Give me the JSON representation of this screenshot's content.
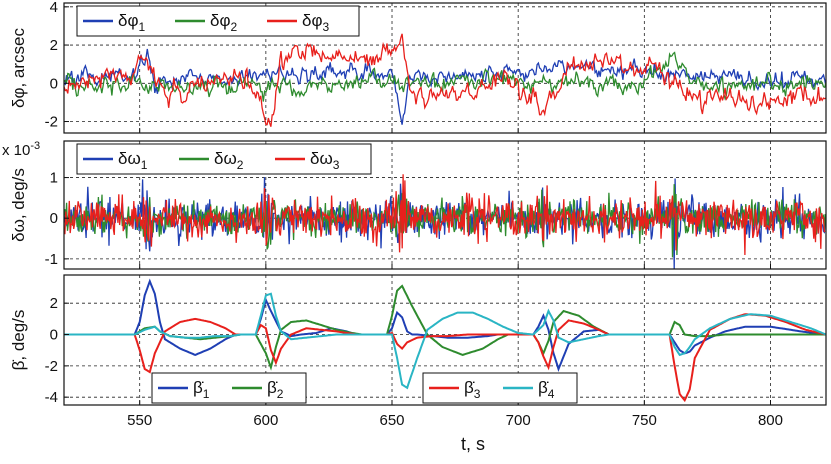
{
  "chart_data": [
    {
      "type": "line",
      "panel": "top",
      "ylabel": "δφ, arcsec",
      "xlim": [
        520,
        822
      ],
      "ylim": [
        -2.6,
        4.2
      ],
      "xticks": [
        550,
        600,
        650,
        700,
        750,
        800
      ],
      "yticks": [
        -2,
        0,
        2,
        4
      ],
      "grid": true,
      "legend_position": "top-left",
      "series": [
        {
          "name": "δφ",
          "sub": "1",
          "color": "#1f3fb4",
          "x": [
            520,
            545,
            550,
            553,
            556,
            560,
            600,
            605,
            650,
            654,
            657,
            700,
            710,
            718,
            750,
            760,
            770,
            790,
            822
          ],
          "y": [
            0.2,
            0.3,
            0.7,
            1.3,
            -0.2,
            0.2,
            0.4,
            0.5,
            0.5,
            -1.9,
            0.3,
            0.6,
            1.0,
            0.8,
            0.6,
            0.5,
            0.3,
            0.2,
            0.2
          ]
        },
        {
          "name": "δφ",
          "sub": "2",
          "color": "#2e8b2e",
          "x": [
            520,
            550,
            555,
            600,
            650,
            655,
            660,
            700,
            710,
            750,
            758,
            762,
            766,
            770,
            790,
            822
          ],
          "y": [
            -0.1,
            0.0,
            -0.2,
            -0.1,
            0.1,
            -0.1,
            0.0,
            0.1,
            0.0,
            0.0,
            1.0,
            1.8,
            0.8,
            0.0,
            0.0,
            0.0
          ],
          "sd": 0.22
        },
        {
          "name": "δφ",
          "sub": "3",
          "color": "#e8201c",
          "x": [
            520,
            548,
            552,
            556,
            560,
            570,
            580,
            595,
            599,
            602,
            606,
            612,
            640,
            650,
            653,
            657,
            661,
            680,
            700,
            706,
            710,
            714,
            720,
            745,
            755,
            758,
            760,
            770,
            790,
            822
          ],
          "y": [
            0.0,
            0.4,
            1.4,
            0.3,
            -0.6,
            -0.2,
            0.2,
            0.0,
            -1.4,
            -2.0,
            1.2,
            1.5,
            1.2,
            1.6,
            2.5,
            -0.2,
            -0.6,
            -0.3,
            0.0,
            -0.8,
            -1.8,
            -0.5,
            1.0,
            1.0,
            0.8,
            0.3,
            0.1,
            -0.7,
            -0.9,
            -0.8
          ],
          "sd": 0.25
        }
      ]
    },
    {
      "type": "line",
      "panel": "middle",
      "ylabel": "δω, deg/s",
      "scale_label": "x 10-3",
      "xlim": [
        520,
        822
      ],
      "ylim": [
        -1.25,
        1.9
      ],
      "xticks": [
        550,
        600,
        650,
        700,
        750,
        800
      ],
      "yticks": [
        -1,
        0,
        1
      ],
      "grid": true,
      "legend_position": "top-left",
      "series": [
        {
          "name": "δω",
          "sub": "1",
          "color": "#1f3fb4",
          "noise_sd": 0.22
        },
        {
          "name": "δω",
          "sub": "2",
          "color": "#2e8b2e",
          "noise_sd": 0.2
        },
        {
          "name": "δω",
          "sub": "3",
          "color": "#e8201c",
          "noise_sd": 0.24
        }
      ],
      "spikes": [
        {
          "x": 553,
          "amplitude": 0.75
        },
        {
          "x": 600,
          "amplitude": 0.95
        },
        {
          "x": 654,
          "amplitude": 0.95
        },
        {
          "x": 710,
          "amplitude": 0.7
        },
        {
          "x": 762,
          "amplitude": 0.9
        }
      ]
    },
    {
      "type": "line",
      "panel": "bottom",
      "ylabel": "β̇, deg/s",
      "xlabel": "t, s",
      "xlim": [
        520,
        822
      ],
      "ylim": [
        -4.5,
        3.8
      ],
      "xticks": [
        550,
        600,
        650,
        700,
        750,
        800
      ],
      "yticks": [
        -4,
        -2,
        0,
        2
      ],
      "grid": true,
      "legend_position": "bottom-center",
      "series": [
        {
          "name": "β̇",
          "sub": "1",
          "color": "#1f3fb4",
          "x": [
            520,
            548,
            550,
            552,
            554,
            556,
            558,
            560,
            566,
            572,
            578,
            584,
            588,
            596,
            598,
            600,
            602,
            606,
            610,
            614,
            620,
            626,
            632,
            636,
            648,
            650,
            652,
            654,
            656,
            658,
            660,
            666,
            672,
            680,
            688,
            692,
            706,
            708,
            710,
            712,
            714,
            716,
            720,
            726,
            732,
            736,
            760,
            762,
            764,
            766,
            768,
            770,
            776,
            782,
            790,
            800,
            812,
            822
          ],
          "y": [
            0,
            0,
            0.8,
            2.5,
            3.4,
            2.6,
            0.8,
            -0.3,
            -0.9,
            -1.3,
            -0.9,
            -0.3,
            0,
            0,
            1.0,
            2.2,
            1.5,
            0.2,
            -0.1,
            0,
            0.1,
            0.4,
            0.2,
            0,
            0,
            0.4,
            1.4,
            1.1,
            0.2,
            0,
            0,
            -0.1,
            -0.2,
            -0.2,
            -0.1,
            0,
            0,
            0.5,
            1.2,
            0.3,
            -1.2,
            -2.2,
            -0.6,
            0.2,
            0.3,
            0,
            0,
            -0.5,
            -1.0,
            -1.2,
            -1.1,
            -0.7,
            -0.2,
            0.2,
            0.5,
            0.5,
            0.2,
            0
          ]
        },
        {
          "name": "β̇",
          "sub": "2",
          "color": "#2e8b2e",
          "x": [
            520,
            548,
            552,
            556,
            558,
            562,
            568,
            574,
            580,
            586,
            590,
            596,
            600,
            602,
            604,
            606,
            610,
            616,
            622,
            628,
            634,
            638,
            648,
            650,
            652,
            654,
            658,
            664,
            670,
            678,
            686,
            692,
            696,
            706,
            708,
            710,
            712,
            714,
            718,
            724,
            730,
            736,
            760,
            762,
            764,
            766,
            770,
            776,
            782,
            790,
            800,
            812,
            822
          ],
          "y": [
            0,
            0,
            0.4,
            0.5,
            0.2,
            -0.1,
            -0.2,
            -0.3,
            -0.2,
            -0.1,
            0,
            0,
            -1.2,
            -2.1,
            -0.8,
            0.3,
            0.8,
            0.9,
            0.6,
            0.3,
            0.1,
            0,
            0,
            1.2,
            2.8,
            3.1,
            1.8,
            0,
            -0.8,
            -1.3,
            -0.9,
            -0.3,
            0,
            0,
            -0.5,
            -1.2,
            -0.4,
            0.8,
            1.5,
            1.2,
            0.5,
            0,
            0,
            0.8,
            0.6,
            0,
            -0.1,
            -0.1,
            0,
            0,
            0,
            0,
            0
          ]
        },
        {
          "name": "β̇",
          "sub": "3",
          "color": "#e8201c",
          "x": [
            520,
            548,
            550,
            552,
            554,
            556,
            560,
            566,
            572,
            578,
            584,
            588,
            596,
            598,
            600,
            602,
            604,
            606,
            610,
            616,
            622,
            628,
            632,
            636,
            648,
            650,
            652,
            654,
            656,
            660,
            666,
            672,
            680,
            688,
            694,
            700,
            706,
            708,
            710,
            712,
            714,
            716,
            720,
            726,
            732,
            736,
            760,
            762,
            764,
            766,
            768,
            770,
            776,
            784,
            790,
            798,
            806,
            814,
            822
          ],
          "y": [
            0,
            0,
            -1.0,
            -2.2,
            -2.4,
            -1.2,
            0.2,
            0.8,
            1.0,
            0.8,
            0.4,
            0,
            0,
            0.6,
            0.4,
            -1.0,
            -1.8,
            -0.9,
            0,
            0.4,
            0.3,
            0.2,
            0.1,
            0,
            0,
            0.1,
            -0.6,
            -0.9,
            -0.5,
            -0.2,
            -0.1,
            -0.1,
            0,
            0,
            0,
            0,
            0,
            -0.5,
            -1.4,
            -2.1,
            -0.8,
            0.3,
            0.9,
            0.7,
            0.3,
            0,
            0,
            -2.0,
            -3.8,
            -4.2,
            -3.5,
            -1.5,
            0.3,
            1.0,
            1.3,
            1.2,
            0.8,
            0.3,
            0
          ]
        },
        {
          "name": "β̇",
          "sub": "4",
          "color": "#2ab5c4",
          "x": [
            520,
            548,
            552,
            556,
            558,
            562,
            568,
            574,
            580,
            586,
            590,
            596,
            598,
            600,
            602,
            604,
            606,
            610,
            616,
            622,
            628,
            634,
            638,
            648,
            650,
            652,
            654,
            656,
            660,
            664,
            670,
            676,
            682,
            688,
            694,
            700,
            706,
            710,
            712,
            714,
            716,
            720,
            726,
            732,
            736,
            760,
            762,
            764,
            766,
            768,
            770,
            776,
            784,
            792,
            800,
            808,
            816,
            822
          ],
          "y": [
            0,
            0,
            0.3,
            0.5,
            0.2,
            -0.1,
            -0.2,
            -0.2,
            -0.1,
            -0.1,
            0,
            0,
            1.2,
            2.5,
            2.6,
            1.2,
            0.2,
            -0.3,
            -0.2,
            -0.1,
            0,
            0,
            0,
            0,
            0,
            -1.5,
            -3.2,
            -3.4,
            -1.5,
            0.3,
            1.0,
            1.4,
            1.4,
            1.0,
            0.5,
            0.1,
            0,
            0.6,
            1.5,
            0.9,
            -0.2,
            -0.5,
            -0.3,
            -0.1,
            0,
            0,
            -0.8,
            -1.3,
            -1.2,
            -0.8,
            -0.3,
            0.4,
            1.0,
            1.3,
            1.2,
            0.8,
            0.4,
            0
          ]
        }
      ]
    }
  ]
}
